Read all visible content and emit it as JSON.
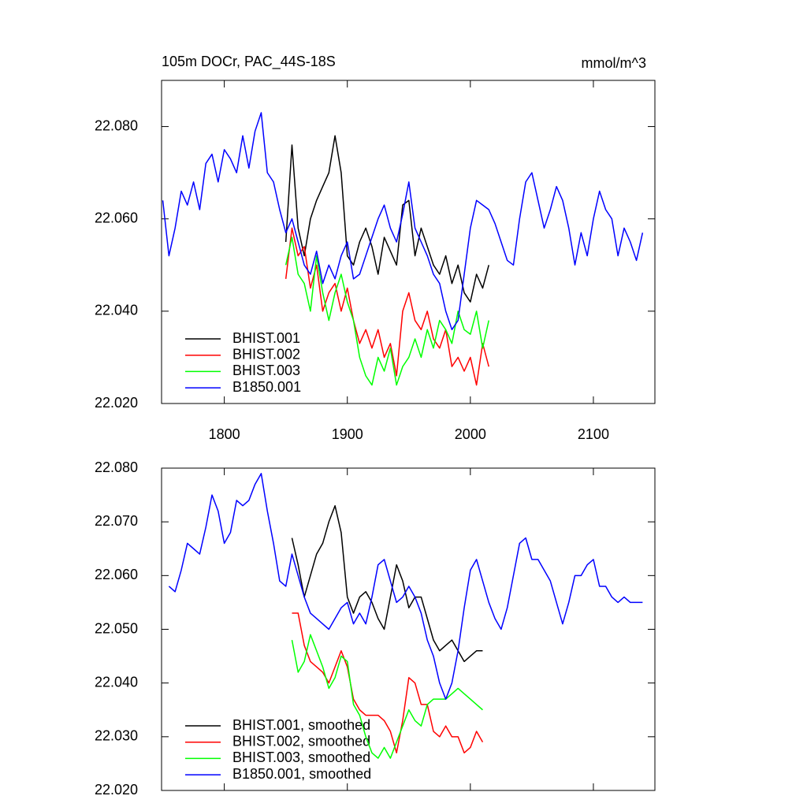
{
  "chart_data": [
    {
      "type": "line",
      "title": "105m DOCr, PAC_44S-18S",
      "units": "mmol/m^3",
      "xlim": [
        1749,
        2150
      ],
      "ylim": [
        22.02,
        22.09
      ],
      "xticks": [
        1800,
        1900,
        2000,
        2100
      ],
      "xtick_labels_visible": true,
      "yticks": [
        {
          "value": 22.02,
          "label": "22.020"
        },
        {
          "value": 22.04,
          "label": "22.040"
        },
        {
          "value": 22.06,
          "label": "22.060"
        },
        {
          "value": 22.08,
          "label": "22.080"
        }
      ],
      "legend": "lower left",
      "x": [
        1750,
        1755,
        1760,
        1765,
        1770,
        1775,
        1780,
        1785,
        1790,
        1795,
        1800,
        1805,
        1810,
        1815,
        1820,
        1825,
        1830,
        1835,
        1840,
        1845,
        1850,
        1855,
        1860,
        1865,
        1870,
        1875,
        1880,
        1885,
        1890,
        1895,
        1900,
        1905,
        1910,
        1915,
        1920,
        1925,
        1930,
        1935,
        1940,
        1945,
        1950,
        1955,
        1960,
        1965,
        1970,
        1975,
        1980,
        1985,
        1990,
        1995,
        2000,
        2005,
        2010,
        2015,
        2020,
        2025,
        2030,
        2035,
        2040,
        2045,
        2050,
        2055,
        2060,
        2065,
        2070,
        2075,
        2080,
        2085,
        2090,
        2095,
        2100,
        2105,
        2110,
        2115,
        2120,
        2125,
        2130,
        2135,
        2140
      ],
      "series": [
        {
          "name": "BHIST.001",
          "color": "#000000",
          "values": [
            null,
            null,
            null,
            null,
            null,
            null,
            null,
            null,
            null,
            null,
            null,
            null,
            null,
            null,
            null,
            null,
            null,
            null,
            null,
            null,
            22.055,
            22.076,
            22.058,
            22.052,
            22.06,
            22.064,
            22.067,
            22.07,
            22.078,
            22.07,
            22.052,
            22.05,
            22.055,
            22.058,
            22.054,
            22.048,
            22.056,
            22.053,
            22.05,
            22.063,
            22.064,
            22.052,
            22.058,
            22.054,
            22.05,
            22.048,
            22.052,
            22.046,
            22.05,
            22.044,
            22.042,
            22.048,
            22.045,
            22.05,
            null,
            null,
            null,
            null,
            null,
            null,
            null,
            null,
            null,
            null,
            null,
            null,
            null,
            null,
            null,
            null,
            null,
            null,
            null,
            null,
            null,
            null,
            null,
            null,
            null
          ]
        },
        {
          "name": "BHIST.002",
          "color": "#ff0000",
          "values": [
            null,
            null,
            null,
            null,
            null,
            null,
            null,
            null,
            null,
            null,
            null,
            null,
            null,
            null,
            null,
            null,
            null,
            null,
            null,
            null,
            22.047,
            22.058,
            22.052,
            22.054,
            22.045,
            22.05,
            22.04,
            22.044,
            22.046,
            22.04,
            22.045,
            22.038,
            22.033,
            22.036,
            22.032,
            22.036,
            22.03,
            22.033,
            22.026,
            22.04,
            22.044,
            22.038,
            22.036,
            22.04,
            22.034,
            22.032,
            22.036,
            22.028,
            22.03,
            22.027,
            22.03,
            22.024,
            22.033,
            22.028,
            null,
            null,
            null,
            null,
            null,
            null,
            null,
            null,
            null,
            null,
            null,
            null,
            null,
            null,
            null,
            null,
            null,
            null,
            null,
            null,
            null,
            null,
            null,
            null,
            null
          ]
        },
        {
          "name": "BHIST.003",
          "color": "#00ff00",
          "values": [
            null,
            null,
            null,
            null,
            null,
            null,
            null,
            null,
            null,
            null,
            null,
            null,
            null,
            null,
            null,
            null,
            null,
            null,
            null,
            null,
            22.05,
            22.056,
            22.048,
            22.046,
            22.04,
            22.052,
            22.044,
            22.038,
            22.044,
            22.048,
            22.042,
            22.038,
            22.03,
            22.026,
            22.024,
            22.03,
            22.027,
            22.032,
            22.024,
            22.028,
            22.03,
            22.034,
            22.03,
            22.036,
            22.032,
            22.038,
            22.036,
            22.033,
            22.04,
            22.036,
            22.035,
            22.04,
            22.032,
            22.038,
            null,
            null,
            null,
            null,
            null,
            null,
            null,
            null,
            null,
            null,
            null,
            null,
            null,
            null,
            null,
            null,
            null,
            null,
            null,
            null,
            null,
            null,
            null,
            null,
            null
          ]
        },
        {
          "name": "B1850.001",
          "color": "#0000ff",
          "values": [
            22.064,
            22.052,
            22.058,
            22.066,
            22.063,
            22.068,
            22.062,
            22.072,
            22.074,
            22.068,
            22.075,
            22.073,
            22.07,
            22.078,
            22.071,
            22.079,
            22.083,
            22.07,
            22.068,
            22.062,
            22.057,
            22.06,
            22.055,
            22.05,
            22.048,
            22.053,
            22.046,
            22.05,
            22.047,
            22.052,
            22.055,
            22.047,
            22.048,
            22.052,
            22.056,
            22.06,
            22.063,
            22.058,
            22.055,
            22.061,
            22.068,
            22.058,
            22.055,
            22.052,
            22.048,
            22.046,
            22.04,
            22.036,
            22.038,
            22.048,
            22.058,
            22.064,
            22.063,
            22.062,
            22.059,
            22.055,
            22.051,
            22.05,
            22.06,
            22.068,
            22.07,
            22.064,
            22.058,
            22.062,
            22.067,
            22.064,
            22.058,
            22.05,
            22.057,
            22.052,
            22.06,
            22.066,
            22.062,
            22.06,
            22.052,
            22.058,
            22.055,
            22.051,
            22.057
          ]
        }
      ]
    },
    {
      "type": "line",
      "xlim": [
        1749,
        2150
      ],
      "ylim": [
        22.02,
        22.08
      ],
      "xticks": [
        1800,
        1900,
        2000,
        2100
      ],
      "xtick_labels_visible": false,
      "yticks": [
        {
          "value": 22.02,
          "label": "22.020"
        },
        {
          "value": 22.03,
          "label": "22.030"
        },
        {
          "value": 22.04,
          "label": "22.040"
        },
        {
          "value": 22.05,
          "label": "22.050"
        },
        {
          "value": 22.06,
          "label": "22.060"
        },
        {
          "value": 22.07,
          "label": "22.070"
        },
        {
          "value": 22.08,
          "label": "22.080"
        }
      ],
      "legend": "lower left",
      "x": [
        1750,
        1755,
        1760,
        1765,
        1770,
        1775,
        1780,
        1785,
        1790,
        1795,
        1800,
        1805,
        1810,
        1815,
        1820,
        1825,
        1830,
        1835,
        1840,
        1845,
        1850,
        1855,
        1860,
        1865,
        1870,
        1875,
        1880,
        1885,
        1890,
        1895,
        1900,
        1905,
        1910,
        1915,
        1920,
        1925,
        1930,
        1935,
        1940,
        1945,
        1950,
        1955,
        1960,
        1965,
        1970,
        1975,
        1980,
        1985,
        1990,
        1995,
        2000,
        2005,
        2010,
        2015,
        2020,
        2025,
        2030,
        2035,
        2040,
        2045,
        2050,
        2055,
        2060,
        2065,
        2070,
        2075,
        2080,
        2085,
        2090,
        2095,
        2100,
        2105,
        2110,
        2115,
        2120,
        2125,
        2130,
        2135,
        2140
      ],
      "series": [
        {
          "name": "BHIST.001, smoothed",
          "color": "#000000",
          "values": [
            null,
            null,
            null,
            null,
            null,
            null,
            null,
            null,
            null,
            null,
            null,
            null,
            null,
            null,
            null,
            null,
            null,
            null,
            null,
            null,
            null,
            22.067,
            22.062,
            22.056,
            22.06,
            22.064,
            22.066,
            22.07,
            22.073,
            22.068,
            22.056,
            22.053,
            22.056,
            22.057,
            22.055,
            22.052,
            22.05,
            22.056,
            22.062,
            22.059,
            22.054,
            22.056,
            22.056,
            22.052,
            22.048,
            22.046,
            22.047,
            22.048,
            22.046,
            22.044,
            22.045,
            22.046,
            22.046,
            null,
            null,
            null,
            null,
            null,
            null,
            null,
            null,
            null,
            null,
            null,
            null,
            null,
            null,
            null,
            null,
            null,
            null,
            null,
            null,
            null,
            null,
            null,
            null,
            null,
            null
          ]
        },
        {
          "name": "BHIST.002, smoothed",
          "color": "#ff0000",
          "values": [
            null,
            null,
            null,
            null,
            null,
            null,
            null,
            null,
            null,
            null,
            null,
            null,
            null,
            null,
            null,
            null,
            null,
            null,
            null,
            null,
            null,
            22.053,
            22.053,
            22.047,
            22.044,
            22.043,
            22.042,
            22.04,
            22.043,
            22.046,
            22.043,
            22.037,
            22.035,
            22.034,
            22.034,
            22.034,
            22.033,
            22.031,
            22.027,
            22.033,
            22.041,
            22.04,
            22.036,
            22.036,
            22.031,
            22.03,
            22.032,
            22.03,
            22.03,
            22.027,
            22.028,
            22.031,
            22.029,
            null,
            null,
            null,
            null,
            null,
            null,
            null,
            null,
            null,
            null,
            null,
            null,
            null,
            null,
            null,
            null,
            null,
            null,
            null,
            null,
            null,
            null,
            null,
            null,
            null,
            null
          ]
        },
        {
          "name": "BHIST.003, smoothed",
          "color": "#00ff00",
          "values": [
            null,
            null,
            null,
            null,
            null,
            null,
            null,
            null,
            null,
            null,
            null,
            null,
            null,
            null,
            null,
            null,
            null,
            null,
            null,
            null,
            null,
            22.048,
            22.042,
            22.044,
            22.049,
            22.046,
            22.043,
            22.039,
            22.041,
            22.045,
            22.044,
            22.036,
            22.034,
            22.03,
            22.027,
            22.026,
            22.028,
            22.026,
            22.029,
            22.032,
            22.035,
            22.033,
            22.032,
            22.036,
            22.037,
            22.037,
            22.037,
            22.038,
            22.039,
            22.038,
            22.037,
            22.036,
            22.035,
            null,
            null,
            null,
            null,
            null,
            null,
            null,
            null,
            null,
            null,
            null,
            null,
            null,
            null,
            null,
            null,
            null,
            null,
            null,
            null,
            null,
            null,
            null,
            null,
            null,
            null
          ]
        },
        {
          "name": "B1850.001, smoothed",
          "color": "#0000ff",
          "values": [
            null,
            22.058,
            22.057,
            22.061,
            22.066,
            22.065,
            22.064,
            22.069,
            22.075,
            22.072,
            22.066,
            22.068,
            22.074,
            22.073,
            22.074,
            22.077,
            22.079,
            22.072,
            22.066,
            22.059,
            22.058,
            22.064,
            22.06,
            22.056,
            22.053,
            22.052,
            22.051,
            22.05,
            22.052,
            22.054,
            22.055,
            22.051,
            22.053,
            22.051,
            22.056,
            22.062,
            22.063,
            22.059,
            22.055,
            22.056,
            22.058,
            22.056,
            22.053,
            22.048,
            22.045,
            22.04,
            22.037,
            22.04,
            22.046,
            22.054,
            22.061,
            22.063,
            22.059,
            22.055,
            22.052,
            22.05,
            22.054,
            22.06,
            22.066,
            22.067,
            22.063,
            22.063,
            22.061,
            22.059,
            22.055,
            22.051,
            22.055,
            22.06,
            22.06,
            22.062,
            22.063,
            22.058,
            22.058,
            22.056,
            22.055,
            22.056,
            22.055,
            22.055,
            22.055
          ]
        }
      ]
    }
  ]
}
